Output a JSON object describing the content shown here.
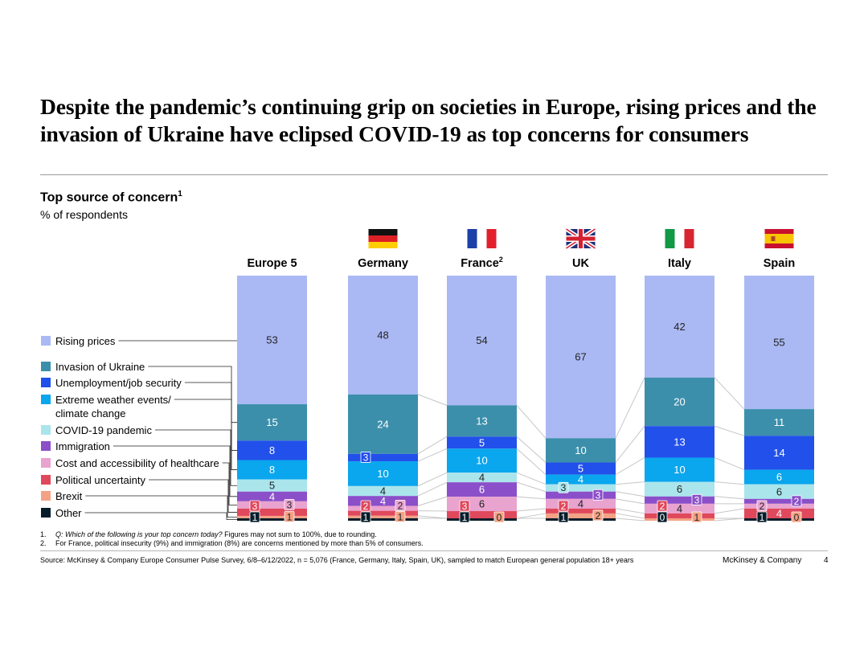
{
  "header": {
    "title": "Despite the pandemic’s continuing grip on societies in Europe, rising prices and the invasion of Ukraine have eclipsed COVID-19 as top concerns for consumers",
    "subtitle": "Top source of concern",
    "subtitle_sup": "1",
    "unit": "% of respondents"
  },
  "chart_data": {
    "type": "bar",
    "stacked": true,
    "normalized_to": 100,
    "title": "Top source of concern",
    "ylabel": "% of respondents",
    "categories": [
      "Europe 5",
      "Germany",
      "France",
      "UK",
      "Italy",
      "Spain"
    ],
    "category_sups": [
      "",
      "",
      "2",
      "",
      "",
      ""
    ],
    "flags": [
      "",
      "germany-flag",
      "france-flag",
      "uk-flag",
      "italy-flag",
      "spain-flag"
    ],
    "series": [
      {
        "name": "Rising prices",
        "color": "#aab9f4",
        "values": [
          53,
          48,
          54,
          67,
          42,
          55
        ]
      },
      {
        "name": "Invasion of Ukraine",
        "color": "#3c8fab",
        "values": [
          15,
          24,
          13,
          10,
          20,
          11
        ]
      },
      {
        "name": "Unemployment/job security",
        "color": "#2250ea",
        "values": [
          8,
          3,
          5,
          5,
          13,
          14
        ]
      },
      {
        "name": "Extreme weather events/ climate change",
        "label_lines": [
          "Extreme weather events/",
          "climate change"
        ],
        "color": "#0aa6ee",
        "values": [
          8,
          10,
          10,
          4,
          10,
          6
        ]
      },
      {
        "name": "COVID-19 pandemic",
        "color": "#aae5ec",
        "values": [
          5,
          4,
          4,
          3,
          6,
          6
        ]
      },
      {
        "name": "Immigration",
        "color": "#8b4fc9",
        "values": [
          4,
          4,
          6,
          3,
          3,
          2
        ]
      },
      {
        "name": "Cost and accessibility of healthcare",
        "color": "#e9a3cf",
        "values": [
          3,
          2,
          6,
          4,
          4,
          2
        ]
      },
      {
        "name": "Political uncertainty",
        "color": "#e0485c",
        "values": [
          3,
          2,
          3,
          2,
          2,
          4
        ]
      },
      {
        "name": "Brexit",
        "color": "#f4a285",
        "values": [
          1,
          1,
          0,
          2,
          1,
          0
        ]
      },
      {
        "name": "Other",
        "color": "#071d2b",
        "values": [
          1,
          1,
          1,
          1,
          0,
          1
        ]
      }
    ]
  },
  "footnotes": [
    {
      "num": "1.",
      "italic": "Q: Which of the following is your top concern today?",
      "text": " Figures may not sum to 100%, due to rounding."
    },
    {
      "num": "2.",
      "italic": "",
      "text": "For France, political insecurity (9%) and immigration (8%) are concerns mentioned by more than 5% of consumers."
    }
  ],
  "footer": {
    "source": "Source: McKinsey & Company Europe Consumer Pulse Survey, 6/8–6/12/2022, n = 5,076 (France, Germany, Italy, Spain, UK), sampled to match European general population 18+ years",
    "brand": "McKinsey & Company",
    "page": "4"
  },
  "colors": {
    "connector": "#c6c6c6",
    "white_label_text": "#ffffff",
    "dark_label_text": "#222222"
  }
}
